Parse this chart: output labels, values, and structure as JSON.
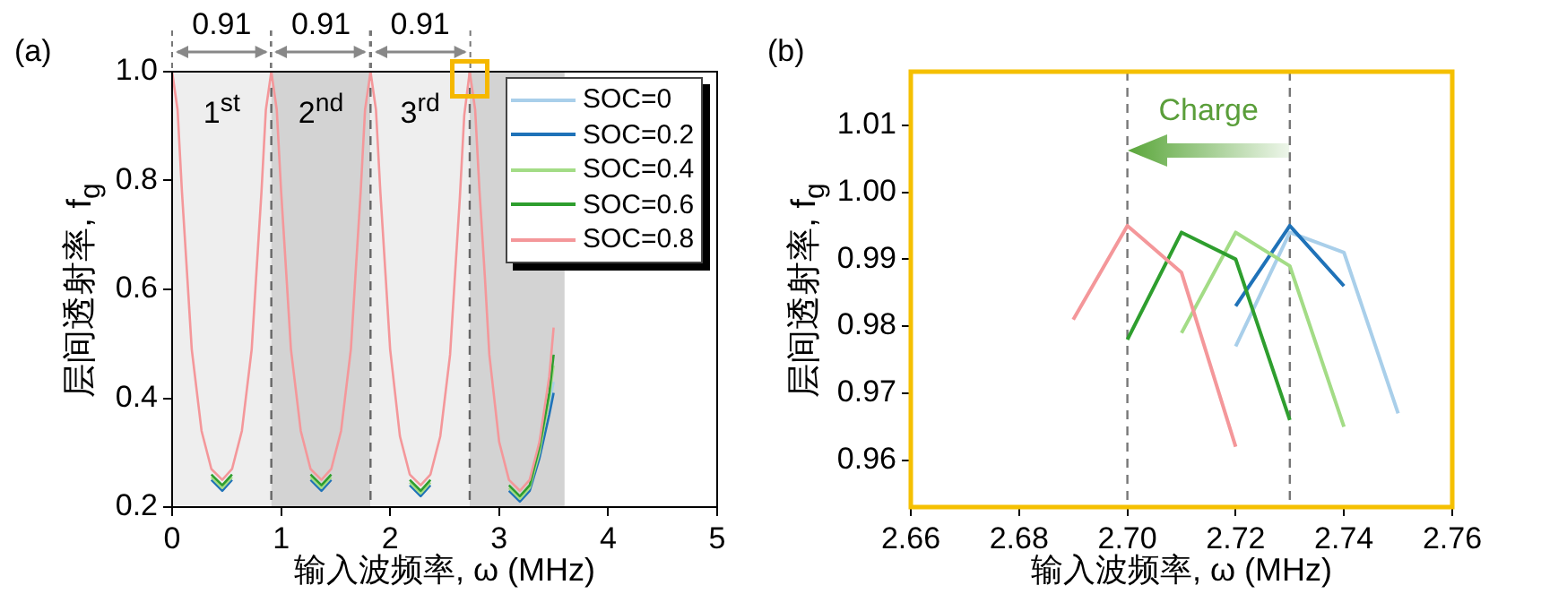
{
  "chart_data": [
    {
      "type": "line",
      "title": "(a)",
      "xlabel": "输入波频率, ω (MHz)",
      "ylabel": "层间透射率, f$_{g}$",
      "x": [
        0,
        0.05,
        0.09,
        0.14,
        0.18,
        0.27,
        0.36,
        0.46,
        0.55,
        0.64,
        0.73,
        0.77,
        0.82,
        0.86,
        0.91,
        0.96,
        1.0,
        1.05,
        1.09,
        1.18,
        1.27,
        1.37,
        1.46,
        1.55,
        1.64,
        1.68,
        1.73,
        1.77,
        1.82,
        1.87,
        1.91,
        1.96,
        2.0,
        2.09,
        2.18,
        2.28,
        2.37,
        2.46,
        2.55,
        2.59,
        2.64,
        2.68,
        2.73,
        2.78,
        2.82,
        2.87,
        2.91,
        3.0,
        3.09,
        3.19,
        3.28,
        3.37,
        3.46,
        3.5
      ],
      "series": [
        {
          "name": "SOC=0",
          "color": "#a9cfea",
          "values": [
            null,
            null,
            null,
            null,
            null,
            null,
            null,
            null,
            null,
            null,
            null,
            null,
            null,
            null,
            null,
            null,
            null,
            null,
            null,
            null,
            null,
            null,
            null,
            null,
            null,
            null,
            null,
            null,
            null,
            null,
            null,
            null,
            null,
            null,
            null,
            null,
            null,
            null,
            null,
            null,
            null,
            null,
            null,
            null,
            null,
            null,
            null,
            null,
            null,
            null,
            null,
            null,
            0.385,
            0.43
          ]
        },
        {
          "name": "SOC=0.2",
          "color": "#1f72b8",
          "values": [
            null,
            null,
            null,
            null,
            null,
            null,
            0.25,
            0.23,
            0.25,
            null,
            null,
            null,
            null,
            null,
            null,
            null,
            null,
            null,
            null,
            null,
            0.25,
            0.23,
            0.25,
            null,
            null,
            null,
            null,
            null,
            null,
            null,
            null,
            null,
            null,
            null,
            0.24,
            0.22,
            0.24,
            null,
            null,
            null,
            null,
            null,
            null,
            null,
            null,
            null,
            null,
            null,
            0.23,
            0.21,
            0.23,
            0.29,
            0.37,
            0.41
          ]
        },
        {
          "name": "SOC=0.4",
          "color": "#a3dc86",
          "values": [
            null,
            null,
            null,
            null,
            null,
            null,
            0.255,
            0.235,
            0.255,
            null,
            null,
            null,
            null,
            null,
            null,
            null,
            null,
            null,
            null,
            null,
            0.255,
            0.235,
            0.255,
            null,
            null,
            null,
            null,
            null,
            null,
            null,
            null,
            null,
            null,
            null,
            0.245,
            0.225,
            0.245,
            null,
            null,
            null,
            null,
            null,
            null,
            null,
            null,
            null,
            null,
            null,
            0.235,
            0.215,
            0.235,
            0.3,
            0.4,
            0.46
          ]
        },
        {
          "name": "SOC=0.6",
          "color": "#2e9e2e",
          "values": [
            null,
            null,
            null,
            null,
            null,
            null,
            0.26,
            0.24,
            0.26,
            null,
            null,
            null,
            null,
            null,
            null,
            null,
            null,
            null,
            null,
            null,
            0.26,
            0.24,
            0.26,
            null,
            null,
            null,
            null,
            null,
            null,
            null,
            null,
            null,
            null,
            null,
            0.25,
            0.23,
            0.25,
            null,
            null,
            null,
            null,
            null,
            null,
            null,
            null,
            null,
            null,
            null,
            0.24,
            0.22,
            0.24,
            0.31,
            0.41,
            0.48
          ]
        },
        {
          "name": "SOC=0.8",
          "color": "#f4979a",
          "values": [
            1,
            0.93,
            0.78,
            0.62,
            0.49,
            0.34,
            0.27,
            0.25,
            0.27,
            0.34,
            0.49,
            0.62,
            0.78,
            0.93,
            1,
            0.93,
            0.78,
            0.62,
            0.49,
            0.34,
            0.27,
            0.25,
            0.27,
            0.34,
            0.49,
            0.62,
            0.78,
            0.93,
            1,
            0.93,
            0.78,
            0.62,
            0.49,
            0.33,
            0.26,
            0.24,
            0.26,
            0.33,
            0.48,
            0.61,
            0.77,
            0.92,
            1,
            0.93,
            0.78,
            0.62,
            0.48,
            0.32,
            0.25,
            0.23,
            0.25,
            0.32,
            0.44,
            0.53
          ]
        }
      ],
      "xlim": [
        0,
        5
      ],
      "ylim": [
        0.2,
        1.0
      ],
      "xticks": [
        0,
        1,
        2,
        3,
        4,
        5
      ],
      "yticks": [
        0.2,
        0.4,
        0.6,
        {
          "value": 1,
          "label": "1.0"
        },
        0.8
      ],
      "bands": [
        {
          "axis": "x",
          "from": 0,
          "to": 0.91,
          "label": "1$^{st}$",
          "color": "#eeeeee"
        },
        {
          "axis": "x",
          "from": 0.91,
          "to": 1.82,
          "label": "2$^{nd}$",
          "color": "#d3d3d3"
        },
        {
          "axis": "x",
          "from": 1.82,
          "to": 2.73,
          "label": "3$^{rd}$",
          "color": "#eeeeee"
        },
        {
          "axis": "x",
          "from": 2.73,
          "to": 3.6,
          "color": "#d3d3d3"
        }
      ],
      "ref_lines": [
        {
          "axis": "x",
          "value": 0.91,
          "color": "#666666",
          "line_style": "dashed"
        },
        {
          "axis": "x",
          "value": 1.82,
          "color": "#666666",
          "line_style": "dashed"
        },
        {
          "axis": "x",
          "value": 2.73,
          "color": "#666666",
          "line_style": "dashed"
        }
      ],
      "annotations": [
        "0.91",
        "0.91",
        "0.91"
      ],
      "legend": "top right"
    },
    {
      "type": "line",
      "title": "(b)",
      "xlabel": "输入波频率, ω (MHz)",
      "ylabel": "层间透射率, f$_{g}$",
      "series": [
        {
          "color": "#a9cfea",
          "x": [
            2.72,
            2.73,
            2.74,
            2.75
          ],
          "values": [
            0.977,
            0.994,
            0.991,
            0.967
          ]
        },
        {
          "color": "#1f72b8",
          "x": [
            2.72,
            2.73,
            2.74
          ],
          "values": [
            0.983,
            0.995,
            0.986
          ]
        },
        {
          "color": "#a3dc86",
          "x": [
            2.71,
            2.72,
            2.73,
            2.74
          ],
          "values": [
            0.979,
            0.994,
            0.989,
            0.965
          ]
        },
        {
          "color": "#2e9e2e",
          "x": [
            2.7,
            2.71,
            2.72,
            2.73
          ],
          "values": [
            0.978,
            0.994,
            0.99,
            0.966
          ]
        },
        {
          "color": "#f4979a",
          "x": [
            2.69,
            2.7,
            2.71,
            2.72
          ],
          "values": [
            0.981,
            0.995,
            0.988,
            0.962
          ]
        }
      ],
      "xlim": [
        2.66,
        2.76
      ],
      "ylim": [
        0.953,
        1.018
      ],
      "xticks": [
        2.66,
        2.68,
        {
          "value": 2.7,
          "label": "2.70"
        },
        2.72,
        2.74,
        2.76
      ],
      "yticks": [
        0.96,
        0.97,
        0.98,
        0.99,
        {
          "value": 1,
          "label": "1.00"
        },
        1.01
      ],
      "ref_lines": [
        {
          "axis": "x",
          "value": 2.7,
          "color": "#777777",
          "line_style": "dashed"
        },
        {
          "axis": "x",
          "value": 2.73,
          "color": "#777777",
          "line_style": "dashed"
        }
      ],
      "annotations": [
        "Charge"
      ]
    }
  ]
}
